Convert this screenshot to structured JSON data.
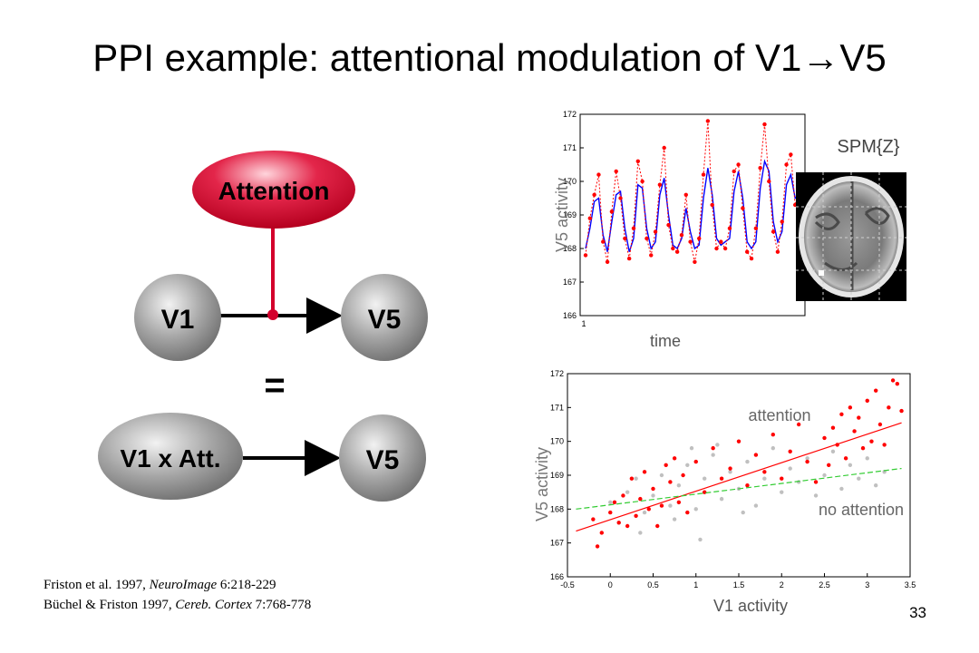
{
  "slide": {
    "title": "PPI example: attentional modulation of V1→V5",
    "page_number": "33"
  },
  "diagram": {
    "attention_label": "Attention",
    "v1_label": "V1",
    "v5_top_label": "V5",
    "equals": "=",
    "interaction_label": "V1 x Att.",
    "v5_bottom_label": "V5",
    "colors": {
      "attention": "#d3002c",
      "node_gray": "#8c8c8c"
    }
  },
  "references": [
    {
      "plain": "Friston et al. 1997, ",
      "journal": "NeuroImage",
      "rest": " 6:218-229"
    },
    {
      "plain": "Büchel & Friston 1997, ",
      "journal": "Cereb. Cortex",
      "rest": " 7:768-778"
    }
  ],
  "brain": {
    "label": "SPM{Z}"
  },
  "chart_data": [
    {
      "type": "line",
      "xlabel": "time",
      "ylabel": "V5 activity",
      "ylim": [
        166,
        172
      ],
      "yticks": [
        "172",
        "171",
        "170",
        "169",
        "168",
        "167",
        "166"
      ],
      "xticks": [
        "1"
      ],
      "grid": false,
      "series": [
        {
          "color": "#0000ff",
          "style": "solid",
          "values": [
            168.0,
            168.6,
            169.4,
            169.5,
            168.4,
            167.9,
            168.8,
            169.6,
            169.7,
            168.6,
            167.9,
            168.3,
            169.9,
            169.8,
            168.6,
            168.0,
            168.2,
            169.6,
            170.1,
            169.0,
            168.1,
            168.0,
            168.3,
            169.2,
            168.5,
            168.0,
            168.1,
            169.5,
            170.4,
            169.6,
            168.3,
            168.1,
            168.2,
            168.3,
            169.7,
            170.3,
            169.5,
            168.2,
            168.0,
            168.2,
            169.8,
            170.6,
            170.3,
            168.8,
            168.2,
            168.5,
            169.9,
            170.2,
            169.5,
            169.6
          ]
        },
        {
          "color": "#ff0000",
          "style": "dotted",
          "markers": true,
          "values": [
            167.8,
            168.9,
            169.6,
            170.2,
            168.2,
            167.6,
            169.1,
            170.3,
            169.5,
            168.3,
            167.7,
            168.6,
            170.6,
            170.0,
            168.3,
            167.8,
            168.5,
            169.9,
            171.0,
            168.7,
            168.0,
            167.9,
            168.4,
            169.6,
            168.2,
            167.6,
            168.3,
            170.2,
            171.8,
            169.3,
            168.0,
            168.2,
            168.0,
            168.6,
            170.3,
            170.5,
            169.2,
            167.9,
            167.7,
            168.6,
            170.4,
            171.7,
            170.0,
            168.5,
            167.9,
            168.8,
            170.5,
            170.8,
            169.3,
            169.8
          ]
        }
      ]
    },
    {
      "type": "scatter",
      "xlabel": "V1 activity",
      "ylabel": "V5 activity",
      "xlim": [
        -0.5,
        3.5
      ],
      "ylim": [
        166,
        172
      ],
      "xticks": [
        "-0.5",
        "0",
        "0.5",
        "1",
        "1.5",
        "2",
        "2.5",
        "3",
        "3.5"
      ],
      "yticks": [
        "172",
        "171",
        "170",
        "169",
        "168",
        "167",
        "166"
      ],
      "grid": false,
      "annotations": [
        "attention",
        "no attention"
      ],
      "series": [
        {
          "color": "#ff0000",
          "fit": {
            "from": [
              -0.4,
              167.35
            ],
            "to": [
              3.4,
              170.55
            ]
          },
          "points": [
            [
              -0.2,
              167.7
            ],
            [
              -0.15,
              166.9
            ],
            [
              -0.1,
              167.3
            ],
            [
              0.0,
              167.9
            ],
            [
              0.05,
              168.2
            ],
            [
              0.1,
              167.6
            ],
            [
              0.15,
              168.4
            ],
            [
              0.2,
              167.5
            ],
            [
              0.25,
              168.9
            ],
            [
              0.3,
              167.8
            ],
            [
              0.35,
              168.3
            ],
            [
              0.4,
              169.1
            ],
            [
              0.45,
              168.0
            ],
            [
              0.5,
              168.6
            ],
            [
              0.55,
              167.5
            ],
            [
              0.6,
              168.1
            ],
            [
              0.65,
              169.3
            ],
            [
              0.7,
              168.8
            ],
            [
              0.75,
              169.5
            ],
            [
              0.8,
              168.2
            ],
            [
              0.85,
              169.0
            ],
            [
              0.9,
              167.9
            ],
            [
              1.0,
              169.4
            ],
            [
              1.1,
              168.5
            ],
            [
              1.2,
              169.8
            ],
            [
              1.3,
              168.9
            ],
            [
              1.4,
              169.2
            ],
            [
              1.5,
              170.0
            ],
            [
              1.6,
              168.7
            ],
            [
              1.7,
              169.6
            ],
            [
              1.8,
              169.1
            ],
            [
              1.9,
              170.2
            ],
            [
              2.0,
              168.9
            ],
            [
              2.1,
              169.7
            ],
            [
              2.2,
              170.5
            ],
            [
              2.3,
              169.4
            ],
            [
              2.4,
              168.8
            ],
            [
              2.5,
              170.1
            ],
            [
              2.55,
              169.3
            ],
            [
              2.6,
              170.4
            ],
            [
              2.65,
              169.9
            ],
            [
              2.7,
              170.8
            ],
            [
              2.75,
              169.5
            ],
            [
              2.8,
              171.0
            ],
            [
              2.85,
              170.3
            ],
            [
              2.9,
              170.7
            ],
            [
              2.95,
              169.8
            ],
            [
              3.0,
              171.2
            ],
            [
              3.05,
              170.0
            ],
            [
              3.1,
              171.5
            ],
            [
              3.15,
              170.5
            ],
            [
              3.2,
              169.9
            ],
            [
              3.25,
              171.0
            ],
            [
              3.3,
              171.8
            ],
            [
              3.35,
              171.7
            ],
            [
              3.4,
              170.9
            ]
          ]
        },
        {
          "color": "#c0c0c0",
          "fit": {
            "from": [
              -0.4,
              168.0
            ],
            "to": [
              3.4,
              169.2
            ],
            "color": "#33cc33"
          },
          "points": [
            [
              0.0,
              168.2
            ],
            [
              0.1,
              167.6
            ],
            [
              0.2,
              168.5
            ],
            [
              0.3,
              168.9
            ],
            [
              0.4,
              167.9
            ],
            [
              0.5,
              168.4
            ],
            [
              0.6,
              169.0
            ],
            [
              0.7,
              168.1
            ],
            [
              0.8,
              168.7
            ],
            [
              0.9,
              169.3
            ],
            [
              1.0,
              168.0
            ],
            [
              1.1,
              168.9
            ],
            [
              1.2,
              169.6
            ],
            [
              1.3,
              168.3
            ],
            [
              1.4,
              169.1
            ],
            [
              1.5,
              168.6
            ],
            [
              1.6,
              169.4
            ],
            [
              1.7,
              168.1
            ],
            [
              1.8,
              168.9
            ],
            [
              1.9,
              169.8
            ],
            [
              2.0,
              168.5
            ],
            [
              2.1,
              169.2
            ],
            [
              2.2,
              168.8
            ],
            [
              2.3,
              169.5
            ],
            [
              2.4,
              168.4
            ],
            [
              2.5,
              169.0
            ],
            [
              2.6,
              169.7
            ],
            [
              2.7,
              168.6
            ],
            [
              2.8,
              169.3
            ],
            [
              2.9,
              168.9
            ],
            [
              3.0,
              169.5
            ],
            [
              3.1,
              168.7
            ],
            [
              3.2,
              169.1
            ],
            [
              0.35,
              167.3
            ],
            [
              0.75,
              167.7
            ],
            [
              1.05,
              167.1
            ],
            [
              1.55,
              167.9
            ],
            [
              1.25,
              169.9
            ],
            [
              0.95,
              169.8
            ]
          ]
        }
      ]
    }
  ]
}
